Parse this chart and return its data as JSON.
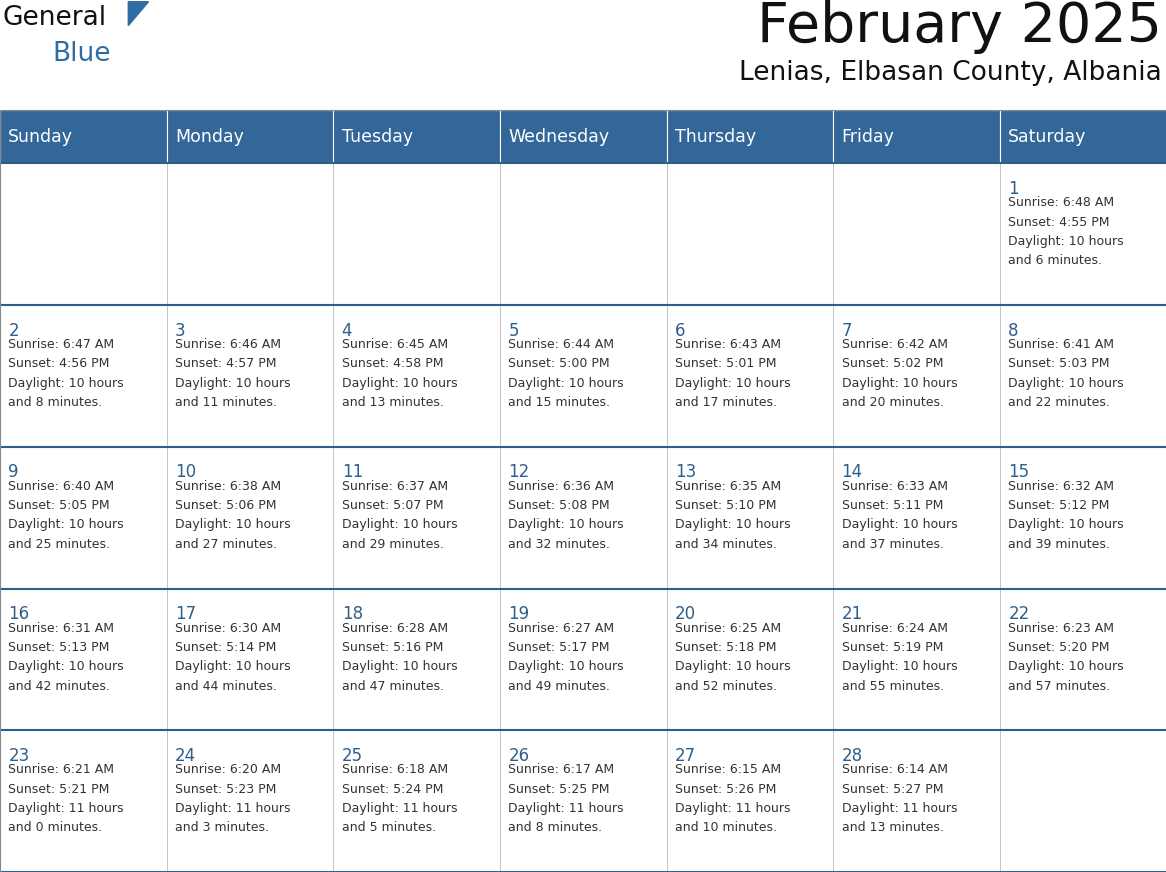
{
  "title": "February 2025",
  "subtitle": "Lenias, Elbasan County, Albania",
  "days_of_week": [
    "Sunday",
    "Monday",
    "Tuesday",
    "Wednesday",
    "Thursday",
    "Friday",
    "Saturday"
  ],
  "header_bg": "#336699",
  "header_text": "#FFFFFF",
  "cell_bg": "#FFFFFF",
  "cell_border_color": "#AAAAAA",
  "row_separator_color": "#2E5F8A",
  "day_num_color": "#2E5F8A",
  "info_color": "#333333",
  "title_color": "#111111",
  "subtitle_color": "#111111",
  "logo_general_color": "#111111",
  "logo_blue_color": "#2E6DA4",
  "logo_triangle_color": "#2E6DA4",
  "calendar_data": [
    {
      "day": 1,
      "col": 6,
      "row": 0,
      "sunrise": "6:48 AM",
      "sunset": "4:55 PM",
      "daylight_h": "10 hours",
      "daylight_m": "and 6 minutes."
    },
    {
      "day": 2,
      "col": 0,
      "row": 1,
      "sunrise": "6:47 AM",
      "sunset": "4:56 PM",
      "daylight_h": "10 hours",
      "daylight_m": "and 8 minutes."
    },
    {
      "day": 3,
      "col": 1,
      "row": 1,
      "sunrise": "6:46 AM",
      "sunset": "4:57 PM",
      "daylight_h": "10 hours",
      "daylight_m": "and 11 minutes."
    },
    {
      "day": 4,
      "col": 2,
      "row": 1,
      "sunrise": "6:45 AM",
      "sunset": "4:58 PM",
      "daylight_h": "10 hours",
      "daylight_m": "and 13 minutes."
    },
    {
      "day": 5,
      "col": 3,
      "row": 1,
      "sunrise": "6:44 AM",
      "sunset": "5:00 PM",
      "daylight_h": "10 hours",
      "daylight_m": "and 15 minutes."
    },
    {
      "day": 6,
      "col": 4,
      "row": 1,
      "sunrise": "6:43 AM",
      "sunset": "5:01 PM",
      "daylight_h": "10 hours",
      "daylight_m": "and 17 minutes."
    },
    {
      "day": 7,
      "col": 5,
      "row": 1,
      "sunrise": "6:42 AM",
      "sunset": "5:02 PM",
      "daylight_h": "10 hours",
      "daylight_m": "and 20 minutes."
    },
    {
      "day": 8,
      "col": 6,
      "row": 1,
      "sunrise": "6:41 AM",
      "sunset": "5:03 PM",
      "daylight_h": "10 hours",
      "daylight_m": "and 22 minutes."
    },
    {
      "day": 9,
      "col": 0,
      "row": 2,
      "sunrise": "6:40 AM",
      "sunset": "5:05 PM",
      "daylight_h": "10 hours",
      "daylight_m": "and 25 minutes."
    },
    {
      "day": 10,
      "col": 1,
      "row": 2,
      "sunrise": "6:38 AM",
      "sunset": "5:06 PM",
      "daylight_h": "10 hours",
      "daylight_m": "and 27 minutes."
    },
    {
      "day": 11,
      "col": 2,
      "row": 2,
      "sunrise": "6:37 AM",
      "sunset": "5:07 PM",
      "daylight_h": "10 hours",
      "daylight_m": "and 29 minutes."
    },
    {
      "day": 12,
      "col": 3,
      "row": 2,
      "sunrise": "6:36 AM",
      "sunset": "5:08 PM",
      "daylight_h": "10 hours",
      "daylight_m": "and 32 minutes."
    },
    {
      "day": 13,
      "col": 4,
      "row": 2,
      "sunrise": "6:35 AM",
      "sunset": "5:10 PM",
      "daylight_h": "10 hours",
      "daylight_m": "and 34 minutes."
    },
    {
      "day": 14,
      "col": 5,
      "row": 2,
      "sunrise": "6:33 AM",
      "sunset": "5:11 PM",
      "daylight_h": "10 hours",
      "daylight_m": "and 37 minutes."
    },
    {
      "day": 15,
      "col": 6,
      "row": 2,
      "sunrise": "6:32 AM",
      "sunset": "5:12 PM",
      "daylight_h": "10 hours",
      "daylight_m": "and 39 minutes."
    },
    {
      "day": 16,
      "col": 0,
      "row": 3,
      "sunrise": "6:31 AM",
      "sunset": "5:13 PM",
      "daylight_h": "10 hours",
      "daylight_m": "and 42 minutes."
    },
    {
      "day": 17,
      "col": 1,
      "row": 3,
      "sunrise": "6:30 AM",
      "sunset": "5:14 PM",
      "daylight_h": "10 hours",
      "daylight_m": "and 44 minutes."
    },
    {
      "day": 18,
      "col": 2,
      "row": 3,
      "sunrise": "6:28 AM",
      "sunset": "5:16 PM",
      "daylight_h": "10 hours",
      "daylight_m": "and 47 minutes."
    },
    {
      "day": 19,
      "col": 3,
      "row": 3,
      "sunrise": "6:27 AM",
      "sunset": "5:17 PM",
      "daylight_h": "10 hours",
      "daylight_m": "and 49 minutes."
    },
    {
      "day": 20,
      "col": 4,
      "row": 3,
      "sunrise": "6:25 AM",
      "sunset": "5:18 PM",
      "daylight_h": "10 hours",
      "daylight_m": "and 52 minutes."
    },
    {
      "day": 21,
      "col": 5,
      "row": 3,
      "sunrise": "6:24 AM",
      "sunset": "5:19 PM",
      "daylight_h": "10 hours",
      "daylight_m": "and 55 minutes."
    },
    {
      "day": 22,
      "col": 6,
      "row": 3,
      "sunrise": "6:23 AM",
      "sunset": "5:20 PM",
      "daylight_h": "10 hours",
      "daylight_m": "and 57 minutes."
    },
    {
      "day": 23,
      "col": 0,
      "row": 4,
      "sunrise": "6:21 AM",
      "sunset": "5:21 PM",
      "daylight_h": "11 hours",
      "daylight_m": "and 0 minutes."
    },
    {
      "day": 24,
      "col": 1,
      "row": 4,
      "sunrise": "6:20 AM",
      "sunset": "5:23 PM",
      "daylight_h": "11 hours",
      "daylight_m": "and 3 minutes."
    },
    {
      "day": 25,
      "col": 2,
      "row": 4,
      "sunrise": "6:18 AM",
      "sunset": "5:24 PM",
      "daylight_h": "11 hours",
      "daylight_m": "and 5 minutes."
    },
    {
      "day": 26,
      "col": 3,
      "row": 4,
      "sunrise": "6:17 AM",
      "sunset": "5:25 PM",
      "daylight_h": "11 hours",
      "daylight_m": "and 8 minutes."
    },
    {
      "day": 27,
      "col": 4,
      "row": 4,
      "sunrise": "6:15 AM",
      "sunset": "5:26 PM",
      "daylight_h": "11 hours",
      "daylight_m": "and 10 minutes."
    },
    {
      "day": 28,
      "col": 5,
      "row": 4,
      "sunrise": "6:14 AM",
      "sunset": "5:27 PM",
      "daylight_h": "11 hours",
      "daylight_m": "and 13 minutes."
    }
  ]
}
